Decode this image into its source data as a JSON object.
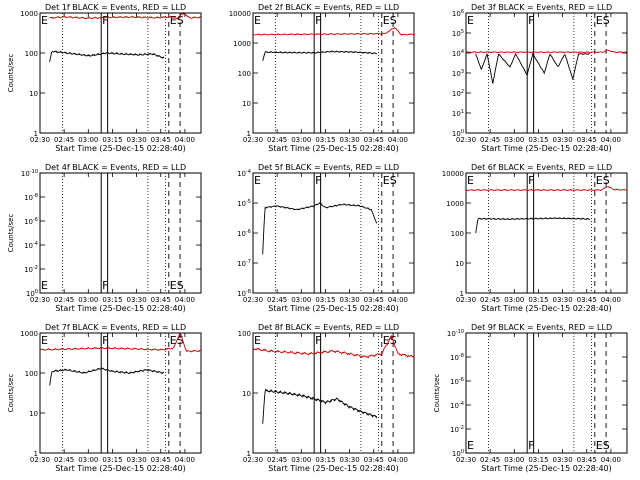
{
  "colors": {
    "events": "#000000",
    "lld": "#cc0000",
    "background": "#ffffff"
  },
  "chart_data": [
    {
      "type": "line",
      "title": "Det 1f BLACK = Events, RED = LLD",
      "xlabel": "Start Time (25-Dec-15 02:28:40)",
      "ylabel": "Counts/sec",
      "xlim": [
        "02:30",
        "04:10"
      ],
      "x_ticks": [
        "02:30",
        "02:45",
        "03:00",
        "03:15",
        "03:30",
        "03:45",
        "04:00"
      ],
      "yscale": "log",
      "ylim": [
        1,
        1000
      ],
      "y_ticks": [
        "1",
        "10",
        "100",
        "1000"
      ],
      "markers": [
        {
          "label": "E",
          "x": "02:30"
        },
        {
          "label": "F",
          "x": "03:08"
        },
        {
          "label": "ES",
          "x": "03:50"
        }
      ],
      "vlines_dotted": [
        "02:44",
        "03:37",
        "03:48"
      ],
      "vlines_solid": [
        "03:08",
        "03:12"
      ],
      "vlines_dashed": [
        "03:50",
        "03:57"
      ],
      "series": [
        {
          "name": "Events",
          "color": "#000000",
          "x_range": [
            "02:36",
            "03:47"
          ],
          "points": [
            [
              0,
              60
            ],
            [
              0.02,
              110
            ],
            [
              0.15,
              100
            ],
            [
              0.35,
              85
            ],
            [
              0.5,
              100
            ],
            [
              0.62,
              95
            ],
            [
              0.78,
              90
            ],
            [
              0.9,
              95
            ],
            [
              1.0,
              75
            ]
          ]
        },
        {
          "name": "LLD",
          "color": "#cc0000",
          "x_range": [
            "02:36",
            "04:10"
          ],
          "points": [
            [
              0,
              750
            ],
            [
              0.1,
              800
            ],
            [
              0.25,
              740
            ],
            [
              0.4,
              780
            ],
            [
              0.55,
              790
            ],
            [
              0.7,
              760
            ],
            [
              0.8,
              800
            ],
            [
              0.85,
              700
            ],
            [
              0.88,
              1100
            ],
            [
              0.92,
              760
            ],
            [
              1.0,
              780
            ]
          ]
        }
      ]
    },
    {
      "type": "line",
      "title": "Det 2f BLACK = Events, RED = LLD",
      "xlabel": "Start Time (25-Dec-15 02:28:40)",
      "ylabel": "",
      "xlim": [
        "02:30",
        "04:10"
      ],
      "x_ticks": [
        "02:30",
        "02:45",
        "03:00",
        "03:15",
        "03:30",
        "03:45",
        "04:00"
      ],
      "yscale": "log",
      "ylim": [
        1,
        10000
      ],
      "y_ticks": [
        "1",
        "10",
        "100",
        "1000",
        "10000"
      ],
      "markers": [
        {
          "label": "E",
          "x": "02:30"
        },
        {
          "label": "F",
          "x": "03:08"
        },
        {
          "label": "ES",
          "x": "03:50"
        }
      ],
      "vlines_dotted": [
        "02:44",
        "03:37",
        "03:48"
      ],
      "vlines_solid": [
        "03:08",
        "03:12"
      ],
      "vlines_dashed": [
        "03:50",
        "03:57"
      ],
      "series": [
        {
          "name": "Events",
          "color": "#000000",
          "x_range": [
            "02:36",
            "03:47"
          ],
          "points": [
            [
              0,
              250
            ],
            [
              0.02,
              500
            ],
            [
              0.2,
              480
            ],
            [
              0.45,
              470
            ],
            [
              0.6,
              520
            ],
            [
              0.8,
              500
            ],
            [
              1.0,
              450
            ]
          ]
        },
        {
          "name": "LLD",
          "color": "#cc0000",
          "x_range": [
            "02:30",
            "04:10"
          ],
          "points": [
            [
              0,
              1900
            ],
            [
              0.3,
              1950
            ],
            [
              0.6,
              2000
            ],
            [
              0.82,
              2050
            ],
            [
              0.88,
              3300
            ],
            [
              0.92,
              1900
            ],
            [
              1.0,
              1950
            ]
          ]
        }
      ]
    },
    {
      "type": "line",
      "title": "Det 3f BLACK = Events, RED = LLD",
      "xlabel": "Start Time (25-Dec-15 02:28:40)",
      "ylabel": "",
      "xlim": [
        "02:30",
        "04:10"
      ],
      "x_ticks": [
        "02:30",
        "02:45",
        "03:00",
        "03:15",
        "03:30",
        "03:45",
        "04:00"
      ],
      "yscale": "log",
      "ylim": [
        1,
        1000000
      ],
      "y_ticks": [
        "10^0",
        "10^1",
        "10^2",
        "10^3",
        "10^4",
        "10^5",
        "10^6"
      ],
      "markers": [
        {
          "label": "E",
          "x": "02:30"
        },
        {
          "label": "F",
          "x": "03:08"
        },
        {
          "label": "ES",
          "x": "03:50"
        }
      ],
      "vlines_dotted": [
        "02:44",
        "03:37",
        "03:48"
      ],
      "vlines_solid": [
        "03:08",
        "03:12"
      ],
      "vlines_dashed": [
        "03:50",
        "03:57"
      ],
      "series": [
        {
          "name": "Events",
          "color": "#000000",
          "x_range": [
            "02:36",
            "03:47"
          ],
          "points": [
            [
              0,
              9000
            ],
            [
              0.05,
              1500
            ],
            [
              0.1,
              9000
            ],
            [
              0.15,
              300
            ],
            [
              0.2,
              9000
            ],
            [
              0.3,
              2000
            ],
            [
              0.35,
              9000
            ],
            [
              0.45,
              800
            ],
            [
              0.5,
              9000
            ],
            [
              0.6,
              1000
            ],
            [
              0.65,
              9000
            ],
            [
              0.72,
              2000
            ],
            [
              0.78,
              9000
            ],
            [
              0.85,
              500
            ],
            [
              0.9,
              9000
            ],
            [
              1.0,
              9000
            ]
          ]
        },
        {
          "name": "LLD",
          "color": "#cc0000",
          "x_range": [
            "02:30",
            "04:10"
          ],
          "points": [
            [
              0,
              11000
            ],
            [
              0.5,
              11000
            ],
            [
              0.85,
              11000
            ],
            [
              0.88,
              14000
            ],
            [
              0.92,
              11000
            ],
            [
              1.0,
              11000
            ]
          ]
        }
      ]
    },
    {
      "type": "line",
      "title": "Det 4f BLACK = Events, RED = LLD",
      "xlabel": "Start Time (25-Dec-15 02:28:40)",
      "ylabel": "Counts/sec",
      "xlim": [
        "02:30",
        "04:10"
      ],
      "x_ticks": [
        "02:30",
        "02:45",
        "03:00",
        "03:15",
        "03:30",
        "03:45",
        "04:00"
      ],
      "yscale": "log",
      "ylim": [
        1,
        1e-10
      ],
      "y_ticks": [
        "10^0",
        "10^-2",
        "10^-4",
        "10^-6",
        "10^-8",
        "10^-10"
      ],
      "markers": [
        {
          "label": "E",
          "x": "02:30"
        },
        {
          "label": "F",
          "x": "03:08"
        },
        {
          "label": "ES",
          "x": "03:50"
        }
      ],
      "vlines_dotted": [
        "02:44",
        "03:37",
        "03:48"
      ],
      "vlines_solid": [
        "03:08",
        "03:12"
      ],
      "vlines_dashed": [
        "03:50",
        "03:57"
      ],
      "series": []
    },
    {
      "type": "line",
      "title": "Det 5f BLACK = Events, RED = LLD",
      "xlabel": "Start Time (25-Dec-15 02:28:40)",
      "ylabel": "",
      "xlim": [
        "02:30",
        "04:10"
      ],
      "x_ticks": [
        "02:30",
        "02:45",
        "03:00",
        "03:15",
        "03:30",
        "03:45",
        "04:00"
      ],
      "yscale": "log",
      "ylim": [
        1e-08,
        0.0001
      ],
      "y_ticks": [
        "10^-8",
        "10^-7",
        "10^-6",
        "10^-5",
        "10^-4"
      ],
      "markers": [
        {
          "label": "E",
          "x": "02:30"
        },
        {
          "label": "F",
          "x": "03:08"
        },
        {
          "label": "ES",
          "x": "03:50"
        }
      ],
      "vlines_dotted": [
        "02:44",
        "03:37",
        "03:48"
      ],
      "vlines_solid": [
        "03:08",
        "03:12"
      ],
      "vlines_dashed": [
        "03:50",
        "03:57"
      ],
      "series": [
        {
          "name": "Events",
          "color": "#000000",
          "x_range": [
            "02:36",
            "03:47"
          ],
          "points": [
            [
              0,
              2e-07
            ],
            [
              0.02,
              7e-06
            ],
            [
              0.12,
              8e-06
            ],
            [
              0.3,
              6e-06
            ],
            [
              0.45,
              8e-06
            ],
            [
              0.5,
              1e-05
            ],
            [
              0.55,
              7e-06
            ],
            [
              0.7,
              9e-06
            ],
            [
              0.85,
              8e-06
            ],
            [
              0.95,
              6e-06
            ],
            [
              1.0,
              2e-06
            ]
          ]
        }
      ]
    },
    {
      "type": "line",
      "title": "Det 6f BLACK = Events, RED = LLD",
      "xlabel": "Start Time (25-Dec-15 02:28:40)",
      "ylabel": "",
      "xlim": [
        "02:30",
        "04:10"
      ],
      "x_ticks": [
        "02:30",
        "02:45",
        "03:00",
        "03:15",
        "03:30",
        "03:45",
        "04:00"
      ],
      "yscale": "log",
      "ylim": [
        1,
        10000
      ],
      "y_ticks": [
        "1",
        "10",
        "100",
        "1000",
        "10000"
      ],
      "markers": [
        {
          "label": "E",
          "x": "02:30"
        },
        {
          "label": "F",
          "x": "03:08"
        },
        {
          "label": "ES",
          "x": "03:50"
        }
      ],
      "vlines_dotted": [
        "02:44",
        "03:37",
        "03:48"
      ],
      "vlines_solid": [
        "03:08",
        "03:12"
      ],
      "vlines_dashed": [
        "03:50",
        "03:57"
      ],
      "series": [
        {
          "name": "Events",
          "color": "#000000",
          "x_range": [
            "02:36",
            "03:47"
          ],
          "points": [
            [
              0,
              100
            ],
            [
              0.02,
              300
            ],
            [
              0.3,
              290
            ],
            [
              0.5,
              300
            ],
            [
              0.7,
              310
            ],
            [
              0.9,
              300
            ],
            [
              1.0,
              290
            ]
          ]
        },
        {
          "name": "LLD",
          "color": "#cc0000",
          "x_range": [
            "02:30",
            "04:10"
          ],
          "points": [
            [
              0,
              2700
            ],
            [
              0.5,
              2700
            ],
            [
              0.84,
              2700
            ],
            [
              0.88,
              3600
            ],
            [
              0.92,
              2800
            ],
            [
              1.0,
              2700
            ]
          ]
        }
      ]
    },
    {
      "type": "line",
      "title": "Det 7f BLACK = Events, RED = LLD",
      "xlabel": "Start Time (25-Dec-15 02:28:40)",
      "ylabel": "Counts/sec",
      "xlim": [
        "02:30",
        "04:10"
      ],
      "x_ticks": [
        "02:30",
        "02:45",
        "03:00",
        "03:15",
        "03:30",
        "03:45",
        "04:00"
      ],
      "yscale": "log",
      "ylim": [
        1,
        1000
      ],
      "y_ticks": [
        "1",
        "10",
        "100",
        "1000"
      ],
      "markers": [
        {
          "label": "E",
          "x": "02:30"
        },
        {
          "label": "F",
          "x": "03:08"
        },
        {
          "label": "ES",
          "x": "03:50"
        }
      ],
      "vlines_dotted": [
        "02:44",
        "03:37",
        "03:48"
      ],
      "vlines_solid": [
        "03:08",
        "03:12"
      ],
      "vlines_dashed": [
        "03:50",
        "03:57"
      ],
      "series": [
        {
          "name": "Events",
          "color": "#000000",
          "x_range": [
            "02:36",
            "03:47"
          ],
          "points": [
            [
              0,
              50
            ],
            [
              0.02,
              110
            ],
            [
              0.15,
              120
            ],
            [
              0.3,
              100
            ],
            [
              0.45,
              130
            ],
            [
              0.55,
              110
            ],
            [
              0.7,
              100
            ],
            [
              0.85,
              120
            ],
            [
              1.0,
              100
            ]
          ]
        },
        {
          "name": "LLD",
          "color": "#cc0000",
          "x_range": [
            "02:30",
            "04:10"
          ],
          "points": [
            [
              0,
              380
            ],
            [
              0.2,
              400
            ],
            [
              0.4,
              420
            ],
            [
              0.6,
              400
            ],
            [
              0.75,
              380
            ],
            [
              0.83,
              420
            ],
            [
              0.87,
              1000
            ],
            [
              0.91,
              350
            ],
            [
              1.0,
              360
            ]
          ]
        }
      ]
    },
    {
      "type": "line",
      "title": "Det 8f BLACK = Events, RED = LLD",
      "xlabel": "Start Time (25-Dec-15 02:28:40)",
      "ylabel": "",
      "xlim": [
        "02:30",
        "04:10"
      ],
      "x_ticks": [
        "02:30",
        "02:45",
        "03:00",
        "03:15",
        "03:30",
        "03:45",
        "04:00"
      ],
      "yscale": "log",
      "ylim": [
        1,
        100
      ],
      "y_ticks": [
        "1",
        "10",
        "100"
      ],
      "markers": [
        {
          "label": "E",
          "x": "02:30"
        },
        {
          "label": "F",
          "x": "03:08"
        },
        {
          "label": "ES",
          "x": "03:50"
        }
      ],
      "vlines_dotted": [
        "02:44",
        "03:37",
        "03:48"
      ],
      "vlines_solid": [
        "03:08",
        "03:12"
      ],
      "vlines_dashed": [
        "03:50",
        "03:57"
      ],
      "series": [
        {
          "name": "Events",
          "color": "#000000",
          "x_range": [
            "02:36",
            "03:47"
          ],
          "points": [
            [
              0,
              3
            ],
            [
              0.02,
              11
            ],
            [
              0.2,
              10
            ],
            [
              0.35,
              9
            ],
            [
              0.45,
              8
            ],
            [
              0.55,
              7
            ],
            [
              0.65,
              8
            ],
            [
              0.75,
              6
            ],
            [
              0.85,
              5
            ],
            [
              1.0,
              4
            ]
          ]
        },
        {
          "name": "LLD",
          "color": "#cc0000",
          "x_range": [
            "02:30",
            "04:10"
          ],
          "points": [
            [
              0,
              55
            ],
            [
              0.1,
              50
            ],
            [
              0.2,
              48
            ],
            [
              0.35,
              45
            ],
            [
              0.5,
              50
            ],
            [
              0.6,
              45
            ],
            [
              0.7,
              40
            ],
            [
              0.8,
              45
            ],
            [
              0.86,
              90
            ],
            [
              0.9,
              45
            ],
            [
              1.0,
              40
            ]
          ]
        }
      ]
    },
    {
      "type": "line",
      "title": "Det 9f BLACK = Events, RED = LLD",
      "xlabel": "Start Time (25-Dec-15 02:28:40)",
      "ylabel": "Counts/sec",
      "xlim": [
        "02:30",
        "04:10"
      ],
      "x_ticks": [
        "02:30",
        "02:45",
        "03:00",
        "03:15",
        "03:30",
        "03:45",
        "04:00"
      ],
      "yscale": "log",
      "ylim": [
        1,
        1e-10
      ],
      "y_ticks": [
        "10^0",
        "10^-2",
        "10^-4",
        "10^-6",
        "10^-8",
        "10^-10"
      ],
      "markers": [
        {
          "label": "E",
          "x": "02:30"
        },
        {
          "label": "F",
          "x": "03:08"
        },
        {
          "label": "ES",
          "x": "03:50"
        }
      ],
      "vlines_dotted": [
        "02:44",
        "03:37",
        "03:48"
      ],
      "vlines_solid": [
        "03:08",
        "03:12"
      ],
      "vlines_dashed": [
        "03:50",
        "03:57"
      ],
      "series": []
    }
  ]
}
